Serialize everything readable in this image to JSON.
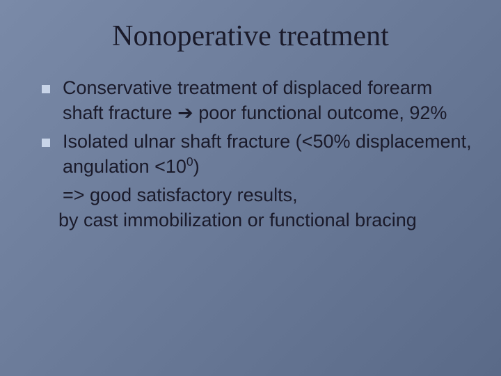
{
  "slide": {
    "title": "Nonoperative treatment",
    "background_gradient": [
      "#7a8aa8",
      "#6a7a98",
      "#5a6a88"
    ],
    "bullet_color": "#c8d4e8",
    "text_color": "#1a1a2a",
    "title_font_family": "Georgia, 'Times New Roman', serif",
    "body_font_family": "Verdana, Geneva, sans-serif",
    "title_fontsize": 42,
    "body_fontsize": 27,
    "bullets": [
      {
        "text_pre": "Conservative treatment of displaced forearm shaft fracture ",
        "arrow": "➔",
        "text_post": " poor functional outcome, 92%"
      },
      {
        "text": "Isolated ulnar shaft fracture (<50% displacement, angulation <10",
        "sup": "0",
        "text_after_sup": ")",
        "cont1": "=> good satisfactory results,",
        "cont2": " by cast immobilization or functional bracing"
      }
    ]
  }
}
